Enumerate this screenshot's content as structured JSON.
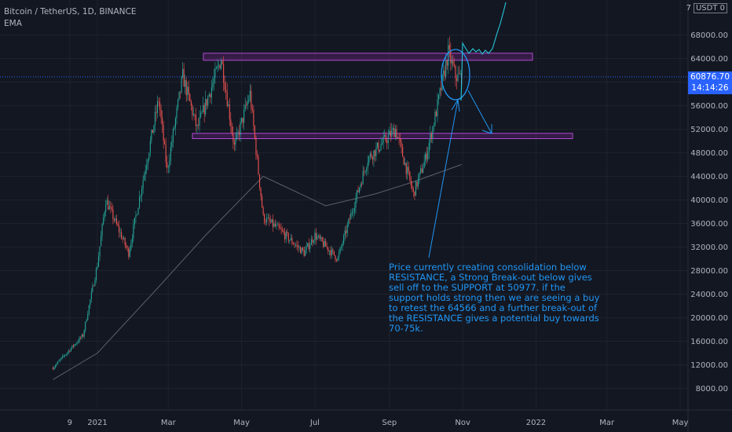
{
  "header": {
    "symbol_line": "Bitcoin / TetherUS, 1D, BINANCE",
    "indicator": "EMA"
  },
  "currency": {
    "prefix": "7",
    "label": "USDT 0"
  },
  "price_tag": {
    "price": "60876.70",
    "countdown": "14:14:26"
  },
  "annotation": "Price currently creating consolidation below RESISTANCE, a Strong Break-out below gives  sell off to the SUPPORT at 50977. if the support holds strong then we are seeing a buy to retest the 64566 and a further break-out of the RESISTANCE gives a potential buy towards 70-75k.",
  "colors": {
    "background": "#131722",
    "up": "#26a69a",
    "down": "#ef5350",
    "zone": "#9c27b0",
    "annotation": "#2196f3",
    "price_line": "#2962ff"
  },
  "chart_data": {
    "type": "candlestick",
    "y_ticks": [
      8000,
      12000,
      16000,
      20000,
      24000,
      28000,
      32000,
      36000,
      40000,
      44000,
      48000,
      52000,
      56000,
      60000,
      64000,
      68000
    ],
    "y_tick_labels": [
      "8000.00",
      "12000.00",
      "16000.00",
      "20000.00",
      "24000.00",
      "28000.00",
      "32000.00",
      "36000.00",
      "40000.00",
      "44000.00",
      "48000.00",
      "52000.00",
      "56000.00",
      "60000.00",
      "64000.00",
      "68000.00"
    ],
    "x_tick_labels": [
      "9",
      "2021",
      "Mar",
      "May",
      "Jul",
      "Sep",
      "Nov",
      "2022",
      "Mar",
      "May"
    ],
    "ylim": [
      4000,
      72000
    ],
    "current_price": 60876.7,
    "resistance_zone": [
      63700,
      64900
    ],
    "support_zone": [
      50400,
      51300
    ],
    "price_path": [
      [
        "2020-11-25",
        11500
      ],
      [
        "2020-12-20",
        17000
      ],
      [
        "2021-01-01",
        29000
      ],
      [
        "2021-01-08",
        40000
      ],
      [
        "2021-01-27",
        31000
      ],
      [
        "2021-02-21",
        57000
      ],
      [
        "2021-02-28",
        45000
      ],
      [
        "2021-03-13",
        61000
      ],
      [
        "2021-03-25",
        52000
      ],
      [
        "2021-04-14",
        64000
      ],
      [
        "2021-04-25",
        49000
      ],
      [
        "2021-05-08",
        58000
      ],
      [
        "2021-05-19",
        37000
      ],
      [
        "2021-06-01",
        35000
      ],
      [
        "2021-06-22",
        31000
      ],
      [
        "2021-07-01",
        34000
      ],
      [
        "2021-07-20",
        30000
      ],
      [
        "2021-08-14",
        47000
      ],
      [
        "2021-09-06",
        52000
      ],
      [
        "2021-09-21",
        41000
      ],
      [
        "2021-10-01",
        47000
      ],
      [
        "2021-10-10",
        55000
      ],
      [
        "2021-10-20",
        65000
      ],
      [
        "2021-10-26",
        61000
      ],
      [
        "2021-10-31",
        60800
      ]
    ],
    "ema_path": [
      [
        "2020-11-25",
        9500
      ],
      [
        "2021-01-01",
        14000
      ],
      [
        "2021-02-20",
        25000
      ],
      [
        "2021-04-01",
        34000
      ],
      [
        "2021-05-19",
        44000
      ],
      [
        "2021-07-10",
        39000
      ],
      [
        "2021-08-20",
        41000
      ],
      [
        "2021-09-20",
        43000
      ],
      [
        "2021-10-31",
        46000
      ]
    ]
  }
}
